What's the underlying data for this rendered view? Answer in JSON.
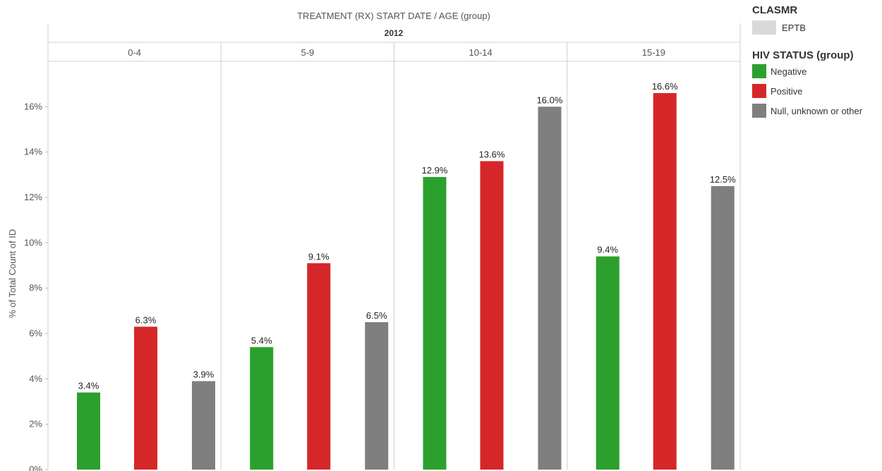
{
  "header": {
    "title": "TREATMENT (RX) START DATE  /  AGE (group)",
    "year": "2012"
  },
  "legend": {
    "clasmr_title": "CLASMR",
    "clasmr_items": [
      {
        "label": "EPTB",
        "color": "#d9d9d9"
      }
    ],
    "hiv_title": "HIV STATUS (group)",
    "hiv_items": [
      {
        "label": "Negative",
        "color": "#2ca02c"
      },
      {
        "label": "Positive",
        "color": "#d62728"
      },
      {
        "label": "Null, unknown or other",
        "color": "#7f7f7f"
      }
    ]
  },
  "chart_data": {
    "type": "bar",
    "title": "TREATMENT (RX) START DATE  /  AGE (group)",
    "column_header": "2012",
    "categories": [
      "0-4",
      "5-9",
      "10-14",
      "15-19"
    ],
    "ylabel": "% of Total Count of ID",
    "xlabel": "",
    "ylim": [
      0,
      18
    ],
    "yticks": [
      0,
      2,
      4,
      6,
      8,
      10,
      12,
      14,
      16
    ],
    "ytick_labels": [
      "0%",
      "2%",
      "4%",
      "6%",
      "8%",
      "10%",
      "12%",
      "14%",
      "16%"
    ],
    "series": [
      {
        "name": "Negative",
        "color": "#2ca02c",
        "values": [
          3.4,
          5.4,
          12.9,
          9.4
        ],
        "labels": [
          "3.4%",
          "5.4%",
          "12.9%",
          "9.4%"
        ]
      },
      {
        "name": "Positive",
        "color": "#d62728",
        "values": [
          6.3,
          9.1,
          13.6,
          16.6
        ],
        "labels": [
          "6.3%",
          "9.1%",
          "13.6%",
          "16.6%"
        ]
      },
      {
        "name": "Null, unknown or other",
        "color": "#7f7f7f",
        "values": [
          3.9,
          6.5,
          16.0,
          12.5
        ],
        "labels": [
          "3.9%",
          "6.5%",
          "16.0%",
          "12.5%"
        ]
      }
    ],
    "grid": false,
    "legend_position": "right"
  }
}
